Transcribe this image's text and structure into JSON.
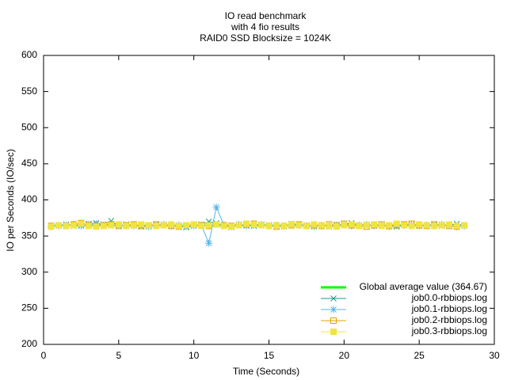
{
  "chart_data": {
    "type": "line",
    "title": [
      "IO read benchmark",
      "with 4 fio results",
      "RAID0 SSD  Blocksize = 1024K"
    ],
    "x_label": "Time (Seconds)",
    "y_label": "IO per Seconds (IO/sec)",
    "xlim": [
      0,
      30
    ],
    "xticks": [
      0,
      5,
      10,
      15,
      20,
      25,
      30
    ],
    "ylim": [
      200,
      600
    ],
    "yticks": [
      200,
      250,
      300,
      350,
      400,
      450,
      500,
      550,
      600
    ],
    "legend": "lower right",
    "average": {
      "name": "Global average value (364.67)",
      "color": "#00ff00",
      "value": 364.67
    },
    "x": [
      0.5,
      1,
      1.5,
      2,
      2.5,
      3,
      3.5,
      4,
      4.5,
      5,
      5.5,
      6,
      6.5,
      7,
      7.5,
      8,
      8.5,
      9,
      9.5,
      10,
      10.5,
      11,
      11.5,
      12,
      12.5,
      13,
      13.5,
      14,
      14.5,
      15,
      15.5,
      16,
      16.5,
      17,
      17.5,
      18,
      18.5,
      19,
      19.5,
      20,
      20.5,
      21,
      21.5,
      22,
      22.5,
      23,
      23.5,
      24,
      24.5,
      25,
      25.5,
      26,
      26.5,
      27,
      27.5,
      28
    ],
    "series": [
      {
        "name": "job0.0-rbbiops.log",
        "color": "#1a9e8a",
        "marker": "x",
        "values": [
          364,
          365,
          366,
          364,
          365,
          367,
          368,
          366,
          371,
          364,
          366,
          365,
          363,
          364,
          366,
          365,
          366,
          364,
          362,
          364,
          366,
          370,
          368,
          364,
          362,
          366,
          365,
          364,
          366,
          365,
          364,
          363,
          367,
          366,
          365,
          364,
          365,
          363,
          364,
          366,
          368,
          365,
          364,
          366,
          365,
          364,
          363,
          365,
          366,
          364,
          365,
          366,
          364,
          365,
          367,
          364
        ]
      },
      {
        "name": "job0.1-rbbiops.log",
        "color": "#56b4e9",
        "marker": "star",
        "values": [
          363,
          364,
          365,
          366,
          364,
          366,
          367,
          365,
          367,
          365,
          364,
          364,
          365,
          363,
          365,
          366,
          364,
          365,
          363,
          364,
          365,
          340,
          390,
          365,
          363,
          366,
          364,
          365,
          366,
          364,
          365,
          364,
          366,
          365,
          364,
          363,
          365,
          364,
          365,
          366,
          364,
          365,
          366,
          364,
          365,
          363,
          364,
          365,
          366,
          364,
          365,
          364,
          366,
          365,
          363,
          364
        ]
      },
      {
        "name": "job0.2-rbbiops.log",
        "color": "#e69f00",
        "marker": "square",
        "values": [
          364,
          365,
          364,
          366,
          368,
          365,
          364,
          365,
          366,
          364,
          365,
          366,
          364,
          365,
          366,
          365,
          364,
          363,
          365,
          366,
          365,
          364,
          366,
          365,
          364,
          365,
          366,
          367,
          365,
          364,
          363,
          364,
          365,
          366,
          364,
          365,
          364,
          366,
          365,
          367,
          365,
          364,
          363,
          365,
          366,
          364,
          365,
          366,
          367,
          365,
          364,
          366,
          365,
          364,
          363,
          365
        ]
      },
      {
        "name": "job0.3-rbbiops.log",
        "color": "#f0e442",
        "marker": "filled-square",
        "values": [
          363,
          365,
          364,
          365,
          367,
          364,
          363,
          364,
          365,
          366,
          364,
          365,
          366,
          365,
          364,
          365,
          366,
          364,
          365,
          366,
          364,
          365,
          366,
          364,
          363,
          365,
          367,
          366,
          365,
          364,
          365,
          364,
          366,
          365,
          364,
          366,
          365,
          364,
          363,
          365,
          366,
          364,
          365,
          366,
          364,
          365,
          367,
          365,
          364,
          366,
          365,
          364,
          365,
          366,
          364,
          365
        ]
      }
    ]
  }
}
